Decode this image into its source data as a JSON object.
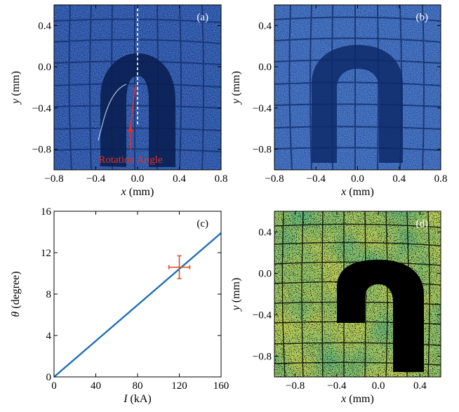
{
  "colors": {
    "panel_bg_ab": "#173f92",
    "panel_bg_d": "#a9c44f",
    "line": "#1f6fb5",
    "marker": "#d9542a",
    "annotation": "#e0302a",
    "sample": "#0a1f52"
  },
  "chart_data": [
    {
      "id": "a",
      "type": "heatmap",
      "panel_label": "(a)",
      "xlabel_var": "x",
      "xlabel_unit": " (mm)",
      "ylabel_var": "y",
      "ylabel_unit": " (mm)",
      "xlim": [
        -0.8,
        0.8
      ],
      "ylim": [
        -1.0,
        0.6
      ],
      "xticks": [
        "−0.8",
        "−0.4",
        "0.0",
        "0.4",
        "0.8"
      ],
      "xtick_values": [
        -0.8,
        -0.4,
        0.0,
        0.4,
        0.8
      ],
      "yticks": [
        "0.4",
        "0.0",
        "−0.4",
        "−0.8"
      ],
      "ytick_values": [
        0.4,
        0.0,
        -0.4,
        -0.8
      ],
      "annotation": "Rotation Angle"
    },
    {
      "id": "b",
      "type": "heatmap",
      "panel_label": "(b)",
      "xlabel_var": "x",
      "xlabel_unit": " (mm)",
      "ylabel_var": "y",
      "ylabel_unit": " (mm)",
      "xlim": [
        -0.8,
        0.8
      ],
      "ylim": [
        -1.0,
        0.6
      ],
      "xticks": [
        "−0.8",
        "−0.4",
        "0.0",
        "0.4",
        "0.8"
      ],
      "xtick_values": [
        -0.8,
        -0.4,
        0.0,
        0.4,
        0.8
      ],
      "yticks": [
        "0.4",
        "0.0",
        "−0.4",
        "−0.8"
      ],
      "ytick_values": [
        0.4,
        0.0,
        -0.4,
        -0.8
      ]
    },
    {
      "id": "c",
      "type": "line",
      "panel_label": "(c)",
      "xlabel_var": "I",
      "xlabel_unit": " (kA)",
      "ylabel_var": "θ",
      "ylabel_unit": " (degree)",
      "xlim": [
        0,
        160
      ],
      "ylim": [
        0,
        16
      ],
      "xticks": [
        "0",
        "40",
        "80",
        "120",
        "160"
      ],
      "xtick_values": [
        0,
        40,
        80,
        120,
        160
      ],
      "yticks": [
        "0",
        "4",
        "8",
        "12",
        "16"
      ],
      "ytick_values": [
        0,
        4,
        8,
        12,
        16
      ],
      "series": [
        {
          "x": [
            0,
            160
          ],
          "y": [
            0,
            13.9
          ]
        }
      ],
      "points": [
        {
          "x": 120,
          "y": 10.6,
          "xerr": 10,
          "yerr": 1.1
        }
      ]
    },
    {
      "id": "d",
      "type": "heatmap",
      "panel_label": "(d)",
      "xlabel_var": "x",
      "xlabel_unit": " (mm)",
      "ylabel_var": "y",
      "ylabel_unit": " (mm)",
      "xlim": [
        -1.0,
        0.6
      ],
      "ylim": [
        -1.0,
        0.6
      ],
      "xticks": [
        "−0.8",
        "−0.4",
        "0.0",
        "0.4"
      ],
      "xtick_values": [
        -0.8,
        -0.4,
        0.0,
        0.4
      ],
      "yticks": [
        "0.4",
        "0.0",
        "−0.4",
        "−0.8"
      ],
      "ytick_values": [
        0.4,
        0.0,
        -0.4,
        -0.8
      ]
    }
  ]
}
